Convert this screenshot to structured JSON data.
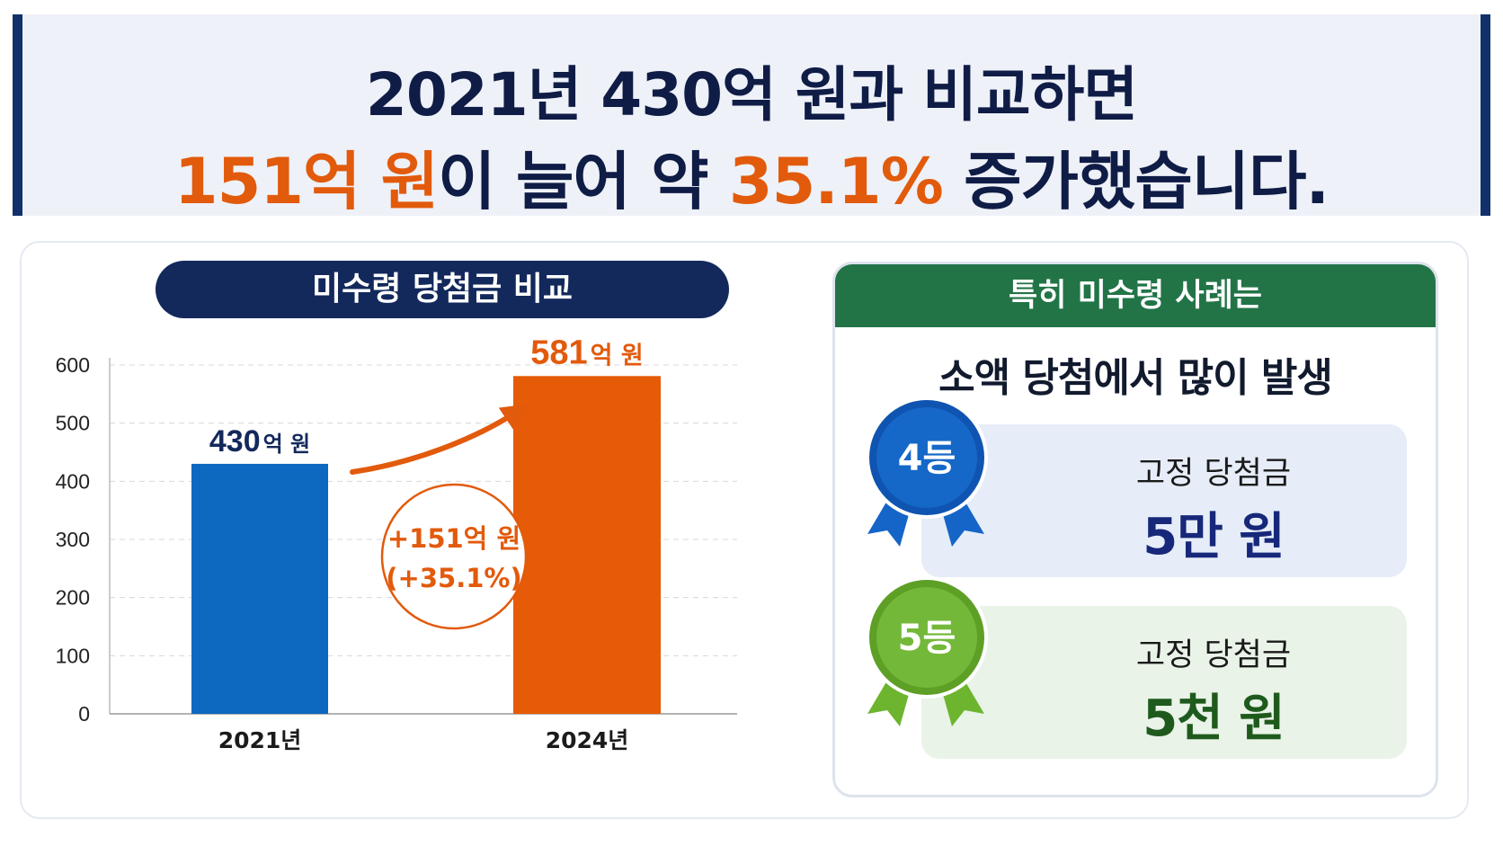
{
  "headline": {
    "line1": "2021년 430억 원과 비교하면",
    "line2_amount": "151억 원",
    "line2_mid": "이 늘어 약 ",
    "line2_pct": "35.1%",
    "line2_end": " 증가했습니다."
  },
  "chart_section": {
    "title": "미수령 당첨금 비교"
  },
  "chart_data": {
    "type": "bar",
    "categories": [
      "2021년",
      "2024년"
    ],
    "values": [
      430,
      581
    ],
    "ylim": [
      0,
      600
    ],
    "yticks": [
      0,
      100,
      200,
      300,
      400,
      500,
      600
    ],
    "grid": true,
    "value_labels": [
      {
        "number": "430",
        "unit": "억 원"
      },
      {
        "number": "581",
        "unit": "억 원"
      }
    ],
    "annotation": {
      "line1": "+151억 원",
      "line2": "(+35.1%)"
    },
    "colors": {
      "bars": [
        "#0d68c0",
        "#e55b07"
      ],
      "accent": "#e25a0c",
      "label_dark": "#13295c"
    }
  },
  "cases": {
    "header": "특히 미수령 사례는",
    "subtitle": "소액 당첨에서 많이 발생",
    "items": [
      {
        "rank": "4등",
        "label": "고정 당첨금",
        "value": "5만 원",
        "color": "#1458b8",
        "icon": "blue-ribbon-medal-icon"
      },
      {
        "rank": "5등",
        "label": "고정 당첨금",
        "value": "5천 원",
        "color": "#6aad2e",
        "icon": "green-ribbon-medal-icon"
      }
    ]
  }
}
